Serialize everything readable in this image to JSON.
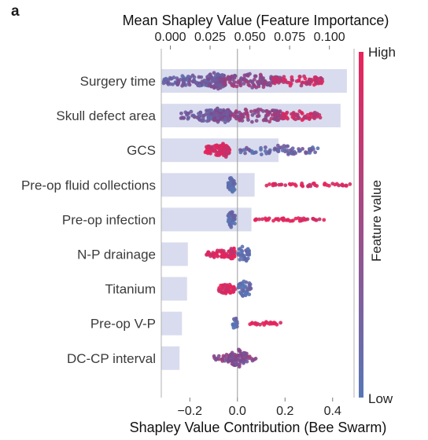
{
  "panel_label": "a",
  "colors": {
    "high": "#e8245a",
    "low": "#5677b6",
    "importance_bar": "#d9dcee",
    "axis": "#9a9a9a"
  },
  "chart_data": {
    "type": "bar+beeswarm",
    "title_top": "Mean Shapley Value (Feature Importance)",
    "xlabel_bottom": "Shapley Value Contribution (Bee Swarm)",
    "top_axis": {
      "range": [
        -0.0057,
        0.1155
      ],
      "ticks": [
        0.0,
        0.025,
        0.05,
        0.075,
        0.1
      ],
      "tick_labels": [
        "0.000",
        "0.025",
        "0.050",
        "0.075",
        "0.100"
      ]
    },
    "bottom_axis": {
      "range": [
        -0.32,
        0.49
      ],
      "ticks": [
        -0.2,
        0.0,
        0.2,
        0.4
      ],
      "tick_labels": [
        "−0.2",
        "0.0",
        "0.2",
        "0.4"
      ]
    },
    "colorbar": {
      "high_label": "High",
      "low_label": "Low",
      "label": "Feature value"
    },
    "features": [
      {
        "name": "Surgery time",
        "importance": 0.111,
        "clusters": [
          {
            "from": -0.31,
            "to": -0.06,
            "count": 95,
            "color_value": 0.25,
            "spread": 7
          },
          {
            "from": -0.13,
            "to": -0.05,
            "count": 70,
            "color_value": 0.35,
            "spread": 11
          },
          {
            "from": -0.06,
            "to": 0.18,
            "count": 110,
            "color_value": 0.55,
            "spread": 9
          },
          {
            "from": 0.15,
            "to": 0.36,
            "count": 70,
            "color_value": 0.85,
            "spread": 7
          }
        ]
      },
      {
        "name": "Skull defect area",
        "importance": 0.107,
        "clusters": [
          {
            "from": -0.24,
            "to": -0.02,
            "count": 80,
            "color_value": 0.3,
            "spread": 7
          },
          {
            "from": -0.1,
            "to": -0.03,
            "count": 55,
            "color_value": 0.4,
            "spread": 11
          },
          {
            "from": -0.03,
            "to": 0.2,
            "count": 100,
            "color_value": 0.55,
            "spread": 9
          },
          {
            "from": 0.18,
            "to": 0.35,
            "count": 55,
            "color_value": 0.85,
            "spread": 6
          }
        ]
      },
      {
        "name": "GCS",
        "importance": 0.068,
        "clusters": [
          {
            "from": -0.14,
            "to": -0.03,
            "count": 80,
            "color_value": 0.95,
            "spread": 7
          },
          {
            "from": -0.07,
            "to": -0.04,
            "count": 40,
            "color_value": 0.9,
            "spread": 10
          },
          {
            "from": 0.0,
            "to": 0.34,
            "count": 70,
            "color_value": 0.2,
            "spread": 6
          }
        ]
      },
      {
        "name": "Pre-op fluid collections",
        "importance": 0.053,
        "clusters": [
          {
            "from": -0.04,
            "to": -0.01,
            "count": 45,
            "color_value": 0.1,
            "spread": 10
          },
          {
            "from": 0.12,
            "to": 0.48,
            "count": 48,
            "color_value": 0.95,
            "spread": 2
          }
        ]
      },
      {
        "name": "Pre-op infection",
        "importance": 0.051,
        "clusters": [
          {
            "from": -0.04,
            "to": -0.01,
            "count": 45,
            "color_value": 0.1,
            "spread": 10
          },
          {
            "from": 0.07,
            "to": 0.37,
            "count": 45,
            "color_value": 0.95,
            "spread": 2
          }
        ]
      },
      {
        "name": "N-P drainage",
        "importance": 0.011,
        "clusters": [
          {
            "from": -0.13,
            "to": -0.01,
            "count": 55,
            "color_value": 0.95,
            "spread": 5
          },
          {
            "from": -0.03,
            "to": -0.01,
            "count": 25,
            "color_value": 0.9,
            "spread": 9
          },
          {
            "from": 0.0,
            "to": 0.05,
            "count": 35,
            "color_value": 0.1,
            "spread": 10
          }
        ]
      },
      {
        "name": "Titanium",
        "importance": 0.0105,
        "clusters": [
          {
            "from": -0.08,
            "to": -0.01,
            "count": 50,
            "color_value": 0.95,
            "spread": 6
          },
          {
            "from": 0.0,
            "to": 0.06,
            "count": 40,
            "color_value": 0.1,
            "spread": 10
          }
        ]
      },
      {
        "name": "Pre-op V-P",
        "importance": 0.0073,
        "clusters": [
          {
            "from": -0.02,
            "to": 0.0,
            "count": 18,
            "color_value": 0.1,
            "spread": 8
          },
          {
            "from": 0.05,
            "to": 0.19,
            "count": 22,
            "color_value": 0.95,
            "spread": 2
          }
        ]
      },
      {
        "name": "DC-CP interval",
        "importance": 0.0058,
        "clusters": [
          {
            "from": -0.1,
            "to": 0.09,
            "count": 45,
            "color_value": 0.55,
            "spread": 5
          },
          {
            "from": -0.03,
            "to": 0.04,
            "count": 50,
            "color_value": 0.45,
            "spread": 11
          }
        ]
      }
    ]
  }
}
